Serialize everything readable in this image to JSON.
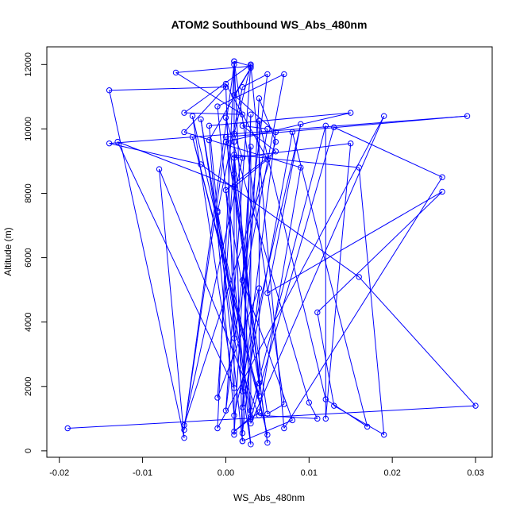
{
  "chart_data": {
    "type": "line",
    "title": "ATOM2 Southbound WS_Abs_480nm",
    "xlabel": "WS_Abs_480nm",
    "ylabel": "Altitude (m)",
    "xlim": [
      -0.0215,
      0.032
    ],
    "ylim": [
      -200,
      12550
    ],
    "x_ticks": [
      -0.02,
      -0.01,
      0.0,
      0.01,
      0.02,
      0.03
    ],
    "x_tick_labels": [
      "-0.02",
      "-0.01",
      "0.00",
      "0.01",
      "0.02",
      "0.03"
    ],
    "y_ticks": [
      0,
      2000,
      4000,
      6000,
      8000,
      10000,
      12000
    ],
    "y_tick_labels": [
      "0",
      "2000",
      "4000",
      "6000",
      "8000",
      "10000",
      "12000"
    ],
    "grid": false,
    "legend": "none",
    "markers": "open-circle",
    "color": "#0000ff",
    "series": [
      {
        "points": [
          [
            -0.019,
            700
          ],
          [
            0.03,
            1400
          ],
          [
            0.016,
            5400
          ],
          [
            -0.003,
            8900
          ],
          [
            -0.014,
            9550
          ],
          [
            0.029,
            10400
          ],
          [
            0.0,
            9750
          ],
          [
            0.005,
            1150
          ],
          [
            0.007,
            1450
          ],
          [
            0.001,
            12100
          ],
          [
            0.003,
            11950
          ],
          [
            -0.006,
            11750
          ],
          [
            0.002,
            10450
          ],
          [
            -0.005,
            10500
          ],
          [
            0.003,
            12000
          ],
          [
            0.001,
            9850
          ],
          [
            0.002,
            9100
          ],
          [
            -0.005,
            800
          ],
          [
            0.006,
            9600
          ],
          [
            0.004,
            10950
          ],
          [
            0.002,
            1350
          ],
          [
            0.008,
            9900
          ],
          [
            0.017,
            750
          ],
          [
            0.012,
            1600
          ],
          [
            0.004,
            10250
          ],
          [
            0.004,
            1700
          ],
          [
            -0.004,
            9750
          ],
          [
            0.005,
            500
          ],
          [
            -0.004,
            10400
          ],
          [
            0.001,
            1950
          ],
          [
            -0.013,
            9600
          ],
          [
            0.001,
            8200
          ],
          [
            0.005,
            9050
          ],
          [
            0.0,
            11400
          ],
          [
            0.001,
            3500
          ],
          [
            0.007,
            11700
          ],
          [
            -0.001,
            10700
          ],
          [
            0.003,
            200
          ],
          [
            -0.003,
            10300
          ],
          [
            0.003,
            1000
          ],
          [
            0.013,
            10050
          ],
          [
            0.026,
            8500
          ],
          [
            0.007,
            700
          ],
          [
            0.003,
            12000
          ],
          [
            0.0,
            1250
          ],
          [
            0.005,
            11700
          ],
          [
            0.002,
            11300
          ],
          [
            -0.001,
            7400
          ],
          [
            0.002,
            300
          ],
          [
            0.008,
            950
          ],
          [
            0.002,
            5300
          ],
          [
            0.005,
            10000
          ],
          [
            0.002,
            10100
          ],
          [
            0.006,
            9300
          ],
          [
            0.0,
            8100
          ],
          [
            0.004,
            2100
          ],
          [
            0.001,
            9200
          ],
          [
            0.016,
            8800
          ],
          [
            0.019,
            500
          ],
          [
            0.013,
            1400
          ],
          [
            0.011,
            4300
          ],
          [
            0.026,
            8050
          ],
          [
            0.005,
            4900
          ],
          [
            0.009,
            10150
          ],
          [
            0.001,
            1100
          ],
          [
            -0.002,
            9650
          ],
          [
            0.003,
            11900
          ],
          [
            0.001,
            11050
          ],
          [
            0.006,
            9900
          ],
          [
            0.002,
            1850
          ],
          [
            0.003,
            10450
          ],
          [
            0.002,
            550
          ],
          [
            0.004,
            5050
          ],
          [
            -0.001,
            1650
          ],
          [
            0.001,
            9100
          ],
          [
            0.015,
            9550
          ],
          [
            0.012,
            1000
          ],
          [
            0.012,
            10100
          ],
          [
            0.003,
            1250
          ],
          [
            -0.001,
            7450
          ],
          [
            -0.002,
            10100
          ],
          [
            0.015,
            10500
          ],
          [
            0.0,
            9600
          ],
          [
            -0.005,
            650
          ],
          [
            0.001,
            12000
          ],
          [
            -0.001,
            700
          ],
          [
            0.019,
            10400
          ],
          [
            0.003,
            850
          ],
          [
            0.001,
            12100
          ],
          [
            0.001,
            8600
          ],
          [
            0.005,
            250
          ],
          [
            0.0,
            10350
          ],
          [
            0.01,
            1500
          ],
          [
            0.011,
            1000
          ],
          [
            0.004,
            1100
          ],
          [
            -0.008,
            8750
          ],
          [
            -0.005,
            400
          ],
          [
            -0.014,
            11200
          ],
          [
            0.0,
            11300
          ],
          [
            -0.005,
            9900
          ],
          [
            0.009,
            8800
          ],
          [
            0.004,
            1200
          ],
          [
            0.001,
            600
          ],
          [
            0.003,
            1050
          ],
          [
            0.003,
            9450
          ],
          [
            0.001,
            500
          ],
          [
            0.001,
            9600
          ],
          [
            0.002,
            300
          ]
        ]
      }
    ]
  }
}
